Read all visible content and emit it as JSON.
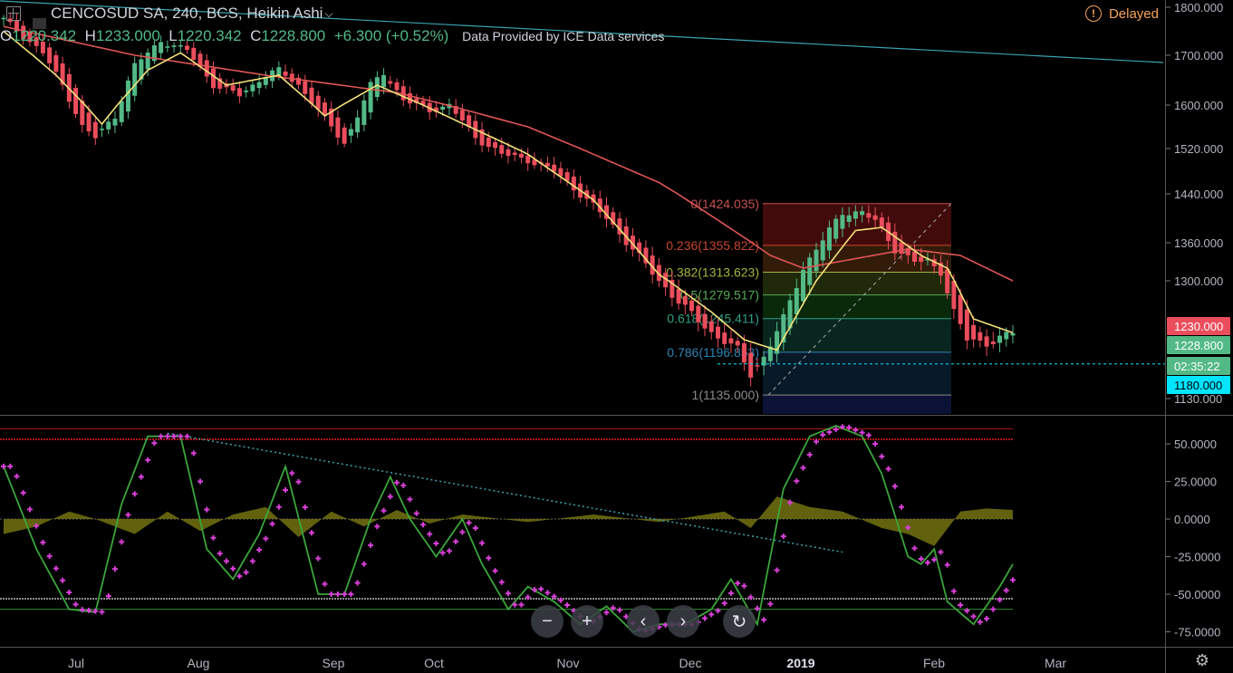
{
  "header": {
    "symbol": "CENCOSUD SA, 240, BCS, Heikin Ashi",
    "dropdown_icon": "chevron-down-icon",
    "delayed_label": "Delayed",
    "ohlc": {
      "o_label": "O",
      "o_value": "1220.342",
      "h_label": "H",
      "h_value": "1233.000",
      "l_label": "L",
      "l_value": "1220.342",
      "c_label": "C",
      "c_value": "1228.800",
      "change": "+6.300 (+0.52%)"
    },
    "source": "Data Provided by ICE Data services"
  },
  "colors": {
    "up": "#53b987",
    "down": "#eb4d5c",
    "ma_fast": "#f5e17a",
    "ma_slow": "#e05555",
    "trend": "#3ba3b0",
    "osc_green": "#3aa63a",
    "osc_pink": "#d83fd8",
    "hist": "#6b6b10"
  },
  "chart_data": [
    {
      "type": "candlestick",
      "title": "CENCOSUD SA, 240, BCS, Heikin Ashi",
      "x_ticks": [
        "Jul",
        "Aug",
        "Sep",
        "Oct",
        "Nov",
        "Dec",
        "2019",
        "Feb",
        "Mar"
      ],
      "y_ticks": [
        "1800.000",
        "1700.000",
        "1600.000",
        "1520.000",
        "1440.000",
        "1360.000",
        "1300.000",
        "1130.000"
      ],
      "ylim": [
        1110,
        1810
      ],
      "price_anchors": [
        [
          0,
          1775
        ],
        [
          3,
          1740
        ],
        [
          6,
          1705
        ],
        [
          9,
          1640
        ],
        [
          12,
          1560
        ],
        [
          14,
          1540
        ],
        [
          17,
          1580
        ],
        [
          20,
          1680
        ],
        [
          24,
          1730
        ],
        [
          28,
          1710
        ],
        [
          32,
          1640
        ],
        [
          36,
          1620
        ],
        [
          40,
          1660
        ],
        [
          42,
          1670
        ],
        [
          45,
          1640
        ],
        [
          48,
          1590
        ],
        [
          52,
          1530
        ],
        [
          54,
          1580
        ],
        [
          56,
          1640
        ],
        [
          58,
          1665
        ],
        [
          61,
          1610
        ],
        [
          65,
          1590
        ],
        [
          68,
          1600
        ],
        [
          72,
          1540
        ],
        [
          76,
          1510
        ],
        [
          80,
          1500
        ],
        [
          84,
          1480
        ],
        [
          88,
          1440
        ],
        [
          92,
          1400
        ],
        [
          96,
          1350
        ],
        [
          100,
          1300
        ],
        [
          104,
          1260
        ],
        [
          108,
          1225
        ],
        [
          112,
          1200
        ],
        [
          114,
          1165
        ],
        [
          116,
          1190
        ],
        [
          119,
          1245
        ],
        [
          122,
          1320
        ],
        [
          126,
          1380
        ],
        [
          128,
          1410
        ],
        [
          131,
          1410
        ],
        [
          133,
          1395
        ],
        [
          136,
          1350
        ],
        [
          139,
          1330
        ],
        [
          141,
          1330
        ],
        [
          143,
          1315
        ],
        [
          145,
          1255
        ],
        [
          147,
          1215
        ],
        [
          150,
          1210
        ],
        [
          154,
          1225
        ]
      ],
      "ma_fast_anchors": [
        [
          0,
          1750
        ],
        [
          8,
          1660
        ],
        [
          15,
          1565
        ],
        [
          22,
          1670
        ],
        [
          27,
          1705
        ],
        [
          34,
          1640
        ],
        [
          42,
          1660
        ],
        [
          49,
          1580
        ],
        [
          57,
          1640
        ],
        [
          64,
          1600
        ],
        [
          72,
          1555
        ],
        [
          80,
          1510
        ],
        [
          90,
          1430
        ],
        [
          100,
          1310
        ],
        [
          108,
          1255
        ],
        [
          113,
          1215
        ],
        [
          118,
          1200
        ],
        [
          124,
          1300
        ],
        [
          130,
          1380
        ],
        [
          134,
          1385
        ],
        [
          140,
          1340
        ],
        [
          144,
          1320
        ],
        [
          148,
          1245
        ],
        [
          154,
          1225
        ]
      ],
      "ma_slow_anchors": [
        [
          0,
          1760
        ],
        [
          20,
          1700
        ],
        [
          40,
          1660
        ],
        [
          60,
          1625
        ],
        [
          80,
          1560
        ],
        [
          100,
          1460
        ],
        [
          110,
          1390
        ],
        [
          117,
          1340
        ],
        [
          122,
          1320
        ],
        [
          130,
          1335
        ],
        [
          138,
          1350
        ],
        [
          146,
          1340
        ],
        [
          154,
          1300
        ]
      ],
      "fib_levels": [
        {
          "label": "0(1424.035)",
          "value": 1424.035,
          "color": "#c65050"
        },
        {
          "label": "0.236(1355.822)",
          "value": 1355.822,
          "color": "#c8452c"
        },
        {
          "label": "0.382(1313.623)",
          "value": 1313.623,
          "color": "#a7b43c"
        },
        {
          "label": "0.5(1279.517)",
          "value": 1279.517,
          "color": "#54ab53"
        },
        {
          "label": "0.618(1245.411)",
          "value": 1245.411,
          "color": "#2f9e84"
        },
        {
          "label": "0.786(1196.853)",
          "value": 1196.853,
          "color": "#2f83b4"
        },
        {
          "label": "1(1135.000)",
          "value": 1135.0,
          "color": "#8a8a8a"
        }
      ],
      "price_tags": [
        {
          "label": "1230.000",
          "value": 1230.0,
          "color": "#eb4d5c"
        },
        {
          "label": "1228.800",
          "value": 1228.8,
          "color": "#53b987"
        },
        {
          "label": "02:35:22",
          "value": 1196.0,
          "color": "#53b987"
        },
        {
          "label": "1180.000",
          "value": 1180.0,
          "color": "#00e5ff"
        }
      ],
      "hline_value": 1180.0
    },
    {
      "type": "line",
      "y_ticks": [
        "50.0000",
        "25.0000",
        "0.0000",
        "-25.0000",
        "-50.0000",
        "-75.0000"
      ],
      "ylim": [
        -85,
        70
      ],
      "upper_lines": [
        60,
        53
      ],
      "lower_lines": [
        -53,
        -60
      ],
      "oscillator_anchors": [
        [
          0,
          35
        ],
        [
          5,
          -20
        ],
        [
          10,
          -60
        ],
        [
          14,
          -62
        ],
        [
          18,
          10
        ],
        [
          22,
          55
        ],
        [
          27,
          55
        ],
        [
          31,
          -20
        ],
        [
          35,
          -40
        ],
        [
          39,
          -10
        ],
        [
          43,
          35
        ],
        [
          48,
          -50
        ],
        [
          52,
          -50
        ],
        [
          56,
          0
        ],
        [
          59,
          28
        ],
        [
          62,
          0
        ],
        [
          66,
          -25
        ],
        [
          70,
          0
        ],
        [
          73,
          -30
        ],
        [
          77,
          -60
        ],
        [
          80,
          -45
        ],
        [
          84,
          -55
        ],
        [
          88,
          -70
        ],
        [
          92,
          -58
        ],
        [
          96,
          -75
        ],
        [
          100,
          -70
        ],
        [
          104,
          -70
        ],
        [
          108,
          -60
        ],
        [
          111,
          -40
        ],
        [
          115,
          -70
        ],
        [
          119,
          20
        ],
        [
          123,
          55
        ],
        [
          127,
          62
        ],
        [
          131,
          55
        ],
        [
          134,
          30
        ],
        [
          138,
          -25
        ],
        [
          140,
          -30
        ],
        [
          142,
          -20
        ],
        [
          144,
          -55
        ],
        [
          148,
          -70
        ],
        [
          152,
          -45
        ],
        [
          154,
          -30
        ]
      ],
      "histogram_anchors": [
        [
          0,
          -10
        ],
        [
          5,
          -5
        ],
        [
          10,
          5
        ],
        [
          14,
          0
        ],
        [
          20,
          -10
        ],
        [
          25,
          5
        ],
        [
          30,
          -8
        ],
        [
          35,
          3
        ],
        [
          40,
          8
        ],
        [
          45,
          -12
        ],
        [
          50,
          5
        ],
        [
          55,
          -5
        ],
        [
          60,
          6
        ],
        [
          65,
          -3
        ],
        [
          70,
          3
        ],
        [
          80,
          -2
        ],
        [
          90,
          3
        ],
        [
          100,
          -2
        ],
        [
          110,
          5
        ],
        [
          114,
          -6
        ],
        [
          118,
          15
        ],
        [
          123,
          8
        ],
        [
          128,
          5
        ],
        [
          134,
          -6
        ],
        [
          138,
          -10
        ],
        [
          142,
          -18
        ],
        [
          146,
          5
        ],
        [
          150,
          7
        ],
        [
          154,
          6
        ]
      ],
      "trendline": [
        [
          25,
          57
        ],
        [
          128,
          -22
        ]
      ]
    }
  ],
  "nav": {
    "zoom_out_icon": "zoom-out-icon",
    "zoom_in_icon": "zoom-in-icon",
    "left_icon": "chevron-left-icon",
    "right_icon": "chevron-right-icon",
    "reset_icon": "reset-icon"
  },
  "settings_icon": "gear-icon"
}
